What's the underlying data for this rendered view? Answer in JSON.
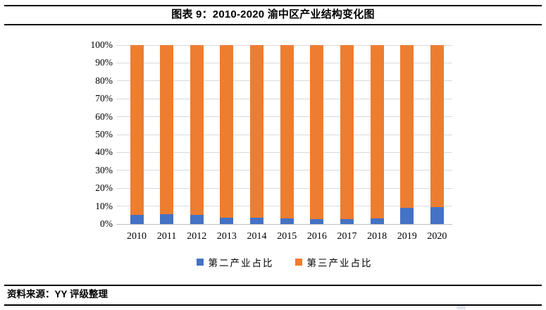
{
  "header": {
    "title": "图表 9：2010-2020 渝中区产业结构变化图"
  },
  "footer": {
    "source": "资料来源：YY 评级整理"
  },
  "colors": {
    "secondary_series": "#4472C4",
    "tertiary_series": "#ED7D31",
    "gridline": "#D9D9D9",
    "axis_line": "#BFBFBF",
    "rule": "#000000"
  },
  "chart_data": {
    "type": "bar",
    "stacked": true,
    "stacked_to_100_percent": true,
    "title": "2010-2020 渝中区产业结构变化图",
    "categories": [
      "2010",
      "2011",
      "2012",
      "2013",
      "2014",
      "2015",
      "2016",
      "2017",
      "2018",
      "2019",
      "2020"
    ],
    "series": [
      {
        "name": "第二产业占比",
        "color": "#4472C4",
        "values": [
          5.0,
          5.5,
          5.0,
          3.5,
          3.5,
          3.0,
          2.8,
          2.8,
          3.3,
          9.0,
          9.3
        ]
      },
      {
        "name": "第三产业占比",
        "color": "#ED7D31",
        "values": [
          95.0,
          94.5,
          95.0,
          96.5,
          96.5,
          97.0,
          97.2,
          97.2,
          96.7,
          91.0,
          90.7
        ]
      }
    ],
    "xlabel": "",
    "ylabel": "",
    "ylim": [
      0,
      100
    ],
    "y_ticks": [
      "0%",
      "10%",
      "20%",
      "30%",
      "40%",
      "50%",
      "60%",
      "70%",
      "80%",
      "90%",
      "100%"
    ],
    "grid": true,
    "legend_position": "bottom"
  }
}
